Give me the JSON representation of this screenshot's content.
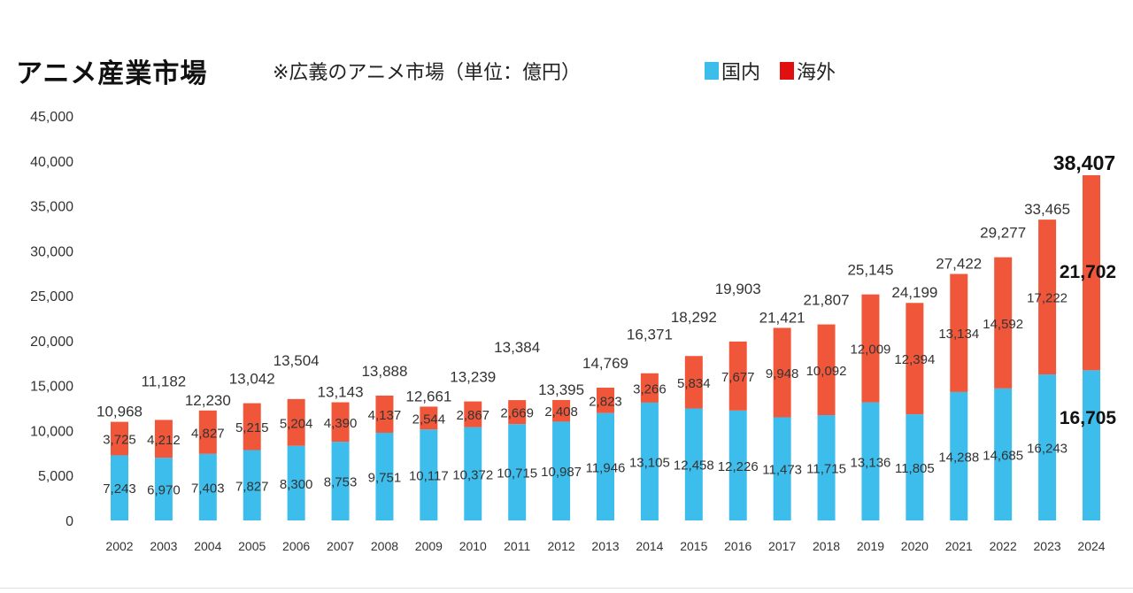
{
  "title": "アニメ産業市場",
  "subtitle": "※広義のアニメ市場（単位：億円）",
  "colors": {
    "domestic": "#3cbdec",
    "overseas": "#f0573a",
    "legend_overseas": "#e01010"
  },
  "chart_data": {
    "type": "bar",
    "stacked": true,
    "title": "アニメ産業市場",
    "subtitle": "※広義のアニメ市場（単位：億円）",
    "xlabel": "",
    "ylabel": "",
    "ylim": [
      0,
      45000
    ],
    "yticks": [
      "0",
      "5,000",
      "10,000",
      "15,000",
      "20,000",
      "25,000",
      "30,000",
      "35,000",
      "40,000",
      "45,000"
    ],
    "grid": false,
    "legend": "top-right",
    "categories": [
      "2002",
      "2003",
      "2004",
      "2005",
      "2006",
      "2007",
      "2008",
      "2009",
      "2010",
      "2011",
      "2012",
      "2013",
      "2014",
      "2015",
      "2016",
      "2017",
      "2018",
      "2019",
      "2020",
      "2021",
      "2022",
      "2023",
      "2024"
    ],
    "series": [
      {
        "name": "国内",
        "values": [
          7243,
          6970,
          7403,
          7827,
          8300,
          8753,
          9751,
          10117,
          10372,
          10715,
          10987,
          11946,
          13105,
          12458,
          12226,
          11473,
          11715,
          13136,
          11805,
          14288,
          14685,
          16243,
          16705
        ]
      },
      {
        "name": "海外",
        "values": [
          3725,
          4212,
          4827,
          5215,
          5204,
          4390,
          4137,
          2544,
          2867,
          2669,
          2408,
          2823,
          3266,
          5834,
          7677,
          9948,
          10092,
          12009,
          12394,
          13134,
          14592,
          17222,
          21702
        ]
      }
    ],
    "totals": [
      10968,
      11182,
      12230,
      13042,
      13504,
      13143,
      13888,
      12661,
      13239,
      13384,
      13395,
      14769,
      16371,
      18292,
      19903,
      21421,
      21807,
      25145,
      24199,
      27422,
      29277,
      33465,
      38407
    ]
  }
}
